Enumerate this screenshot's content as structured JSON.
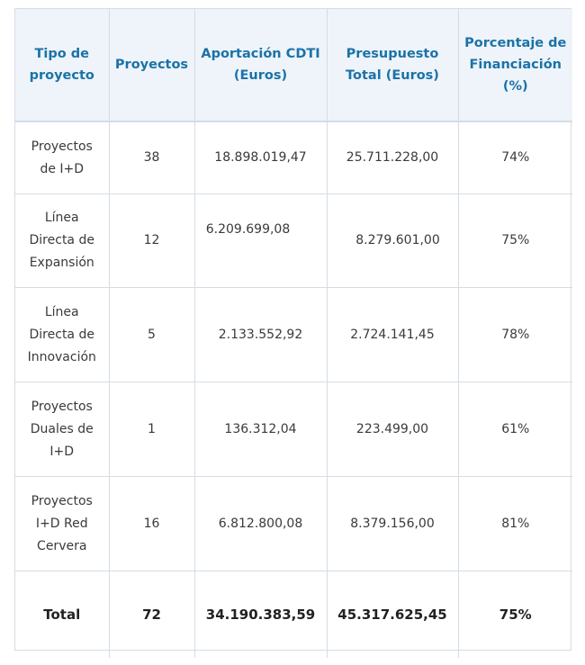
{
  "table": {
    "headers": [
      "Tipo de proyecto",
      "Proyectos",
      "Aportación CDTI (Euros)",
      "Presupuesto Total (Euros)",
      "Porcentaje de Financiación (%)"
    ],
    "rows": [
      {
        "tipo": [
          "Proyectos",
          "de I+D"
        ],
        "proyectos": "38",
        "aportacion": "18.898.019,47",
        "presupuesto": "25.711.228,00",
        "porcentaje": "74%"
      },
      {
        "tipo": [
          "Línea",
          "Directa de",
          "Expansión"
        ],
        "proyectos": "12",
        "aportacion": "6.209.699,08",
        "presupuesto": "8.279.601,00",
        "porcentaje": "75%"
      },
      {
        "tipo": [
          "Línea",
          "Directa de",
          "Innovación"
        ],
        "proyectos": "5",
        "aportacion": "2.133.552,92",
        "presupuesto": "2.724.141,45",
        "porcentaje": "78%"
      },
      {
        "tipo": [
          "Proyectos",
          "Duales de",
          "I+D"
        ],
        "proyectos": "1",
        "aportacion": "136.312,04",
        "presupuesto": "223.499,00",
        "porcentaje": "61%"
      },
      {
        "tipo": [
          "Proyectos",
          "I+D Red",
          "Cervera"
        ],
        "proyectos": "16",
        "aportacion": "6.812.800,08",
        "presupuesto": "8.379.156,00",
        "porcentaje": "81%"
      }
    ],
    "total": {
      "label": "Total",
      "proyectos": "72",
      "aportacion": "34.190.383,59",
      "presupuesto": "45.317.625,45",
      "porcentaje": "75%"
    }
  }
}
